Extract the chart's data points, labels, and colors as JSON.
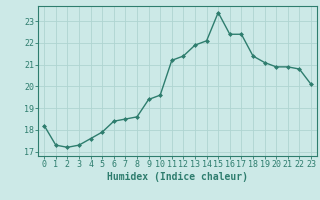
{
  "x": [
    0,
    1,
    2,
    3,
    4,
    5,
    6,
    7,
    8,
    9,
    10,
    11,
    12,
    13,
    14,
    15,
    16,
    17,
    18,
    19,
    20,
    21,
    22,
    23
  ],
  "y": [
    18.2,
    17.3,
    17.2,
    17.3,
    17.6,
    17.9,
    18.4,
    18.5,
    18.6,
    19.4,
    19.6,
    21.2,
    21.4,
    21.9,
    22.1,
    23.4,
    22.4,
    22.4,
    21.4,
    21.1,
    20.9,
    20.9,
    20.8,
    20.1
  ],
  "line_color": "#2e7d6e",
  "marker": "D",
  "marker_size": 2,
  "background_color": "#cce9e7",
  "grid_color": "#afd4d1",
  "xlabel": "Humidex (Indice chaleur)",
  "ylabel": "",
  "ylim": [
    16.8,
    23.7
  ],
  "xlim": [
    -0.5,
    23.5
  ],
  "yticks": [
    17,
    18,
    19,
    20,
    21,
    22,
    23
  ],
  "xticks": [
    0,
    1,
    2,
    3,
    4,
    5,
    6,
    7,
    8,
    9,
    10,
    11,
    12,
    13,
    14,
    15,
    16,
    17,
    18,
    19,
    20,
    21,
    22,
    23
  ],
  "tick_color": "#2e7d6e",
  "axis_color": "#2e7d6e",
  "xlabel_fontsize": 7,
  "tick_fontsize": 6,
  "linewidth": 1.0
}
